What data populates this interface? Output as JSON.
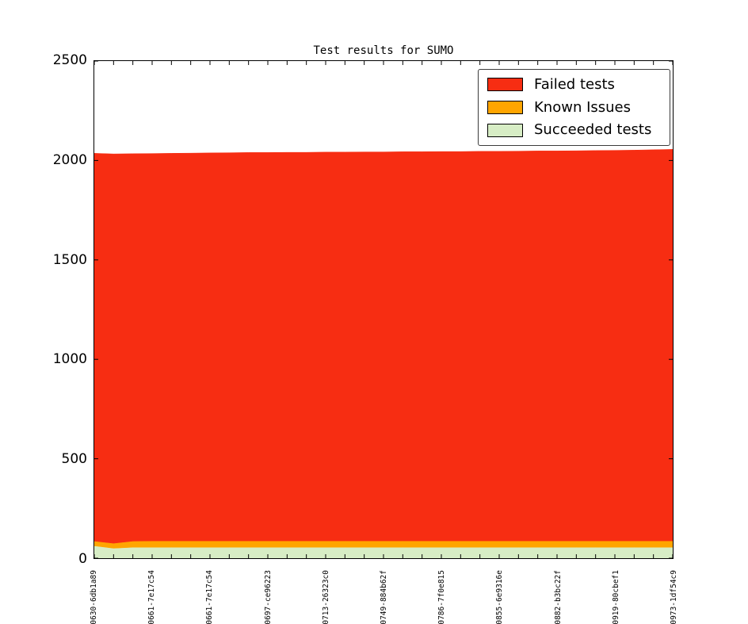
{
  "chart_data": {
    "type": "area",
    "stacked": true,
    "title": "Test results for SUMO",
    "xlabel": "",
    "ylabel": "",
    "ylim": [
      0,
      2500
    ],
    "yticks": [
      0,
      500,
      1000,
      1500,
      2000,
      2500
    ],
    "grid": false,
    "n_points": 31,
    "label_every": 3,
    "x_tick_labels": [
      "0630-6db1a89",
      "0661-7e17c54",
      "0661-7e17c54",
      "0697-ce96223",
      "0713-26323c0",
      "0749-884b62f",
      "0786-7f0e815",
      "0855-6e9316e",
      "-0882-b3bc22f",
      "-0919-80cbef1",
      "-0973-1df54c9"
    ],
    "series": [
      {
        "name": "Succeeded tests",
        "color": "#d7edc5",
        "values": [
          62,
          50,
          55,
          55,
          55,
          55,
          55,
          55,
          55,
          55,
          55,
          55,
          55,
          55,
          55,
          55,
          55,
          55,
          55,
          55,
          55,
          55,
          55,
          55,
          55,
          55,
          55,
          55,
          55,
          55,
          55
        ]
      },
      {
        "name": "Known Issues",
        "color": "#ffa500",
        "values": [
          24,
          25,
          31,
          32,
          32,
          32,
          32,
          32,
          32,
          32,
          32,
          32,
          32,
          32,
          32,
          32,
          32,
          32,
          32,
          32,
          32,
          32,
          32,
          32,
          32,
          32,
          32,
          32,
          32,
          32,
          32
        ]
      },
      {
        "name": "Failed tests",
        "color": "#f72d12",
        "values": [
          1950,
          1958,
          1948,
          1948,
          1949,
          1950,
          1951,
          1952,
          1953,
          1953,
          1954,
          1954,
          1955,
          1955,
          1956,
          1956,
          1957,
          1957,
          1958,
          1958,
          1959,
          1959,
          1960,
          1961,
          1961,
          1962,
          1963,
          1964,
          1965,
          1967,
          1969
        ]
      }
    ],
    "legend": {
      "position": "upper right",
      "entries": [
        {
          "label": "Failed tests",
          "color": "#f72d12"
        },
        {
          "label": "Known Issues",
          "color": "#ffa500"
        },
        {
          "label": "Succeeded tests",
          "color": "#d7edc5"
        }
      ]
    },
    "axis_color": "#000000",
    "background_color": "#ffffff"
  }
}
